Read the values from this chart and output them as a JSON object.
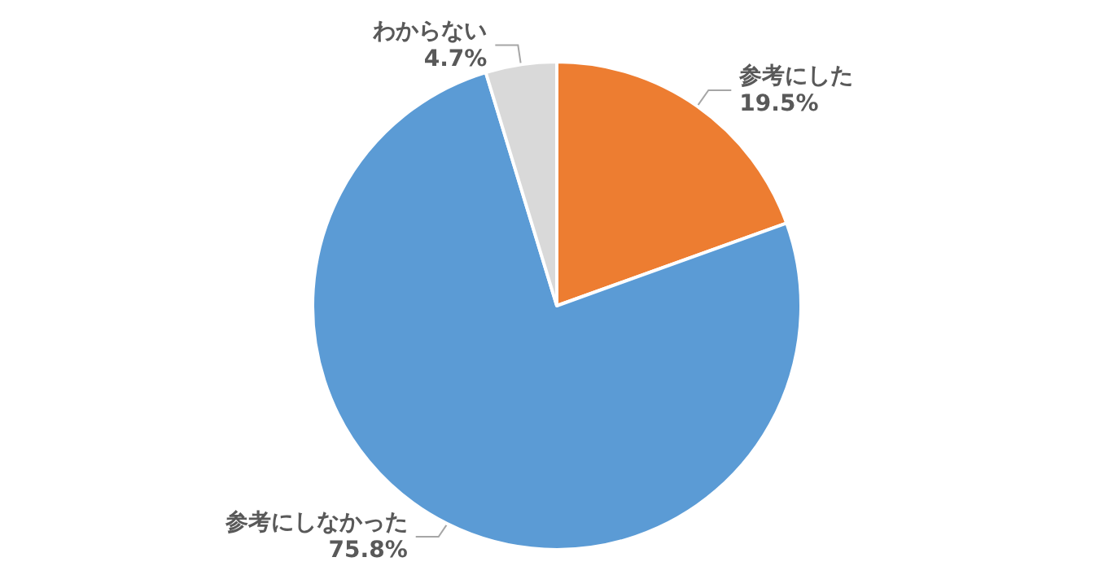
{
  "chart_data": {
    "type": "pie",
    "categories": [
      "参考にした",
      "参考にしなかった",
      "わからない"
    ],
    "values": [
      19.5,
      75.8,
      4.7
    ],
    "colors": [
      "#ed7d31",
      "#5b9bd5",
      "#d9d9d9"
    ],
    "value_labels": [
      "19.5%",
      "75.8%",
      "4.7%"
    ],
    "legend": false
  }
}
